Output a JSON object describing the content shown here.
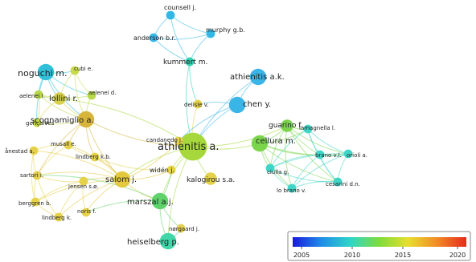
{
  "network": {
    "nodes": [
      {
        "id": "counsell",
        "label": "counsell j.",
        "color": "#33b8e6",
        "weight": 1
      },
      {
        "id": "anderson",
        "label": "anderson b.r.",
        "color": "#33b8e6",
        "weight": 1
      },
      {
        "id": "murphy",
        "label": "murphy g.b.",
        "color": "#33b8e6",
        "weight": 1
      },
      {
        "id": "kummert",
        "label": "kummert m.",
        "color": "#2ed1b0",
        "weight": 1
      },
      {
        "id": "athienitis_ak",
        "label": "athienitis a.k.",
        "color": "#3ab5e8",
        "weight": 3
      },
      {
        "id": "noguchi",
        "label": "noguchi m.",
        "color": "#30c0d8",
        "weight": 3
      },
      {
        "id": "cubi",
        "label": "cubi e.",
        "color": "#c8d94a",
        "weight": 1
      },
      {
        "id": "aelenei_l",
        "label": "aelenei l.",
        "color": "#b8d84c",
        "weight": 1
      },
      {
        "id": "lollini",
        "label": "lollini r.",
        "color": "#d8d04a",
        "weight": 2
      },
      {
        "id": "aelenei_d",
        "label": "aelenei d.",
        "color": "#b8d84c",
        "weight": 1
      },
      {
        "id": "scognamiglio",
        "label": "scognamiglio a.",
        "color": "#d7b43a",
        "weight": 3
      },
      {
        "id": "goncalves",
        "label": "gonçalves",
        "color": "#c8d94a",
        "weight": 1
      },
      {
        "id": "delisle",
        "label": "delisle v.",
        "color": "#e6d24a",
        "weight": 1
      },
      {
        "id": "chen",
        "label": "chen y.",
        "color": "#3ab5e8",
        "weight": 3
      },
      {
        "id": "guarino",
        "label": "guarino f.",
        "color": "#7ad54a",
        "weight": 2
      },
      {
        "id": "lamagnella",
        "label": "lamagnella l.",
        "color": "#3fd6c8",
        "weight": 1
      },
      {
        "id": "cellura",
        "label": "cellura m.",
        "color": "#7ad54a",
        "weight": 3
      },
      {
        "id": "athienitis_a",
        "label": "athienitis a.",
        "color": "#a6d83c",
        "weight": 6
      },
      {
        "id": "candanedo",
        "label": "candanedo j.",
        "color": "#e6d24a",
        "weight": 1
      },
      {
        "id": "musall",
        "label": "musall e.",
        "color": "#e6d24a",
        "weight": 1
      },
      {
        "id": "anestad",
        "label": "ånestad a.",
        "color": "#e6d24a",
        "weight": 1
      },
      {
        "id": "lindberg_kb",
        "label": "lindberg k.b.",
        "color": "#e6d24a",
        "weight": 1
      },
      {
        "id": "sartori",
        "label": "sartori i.",
        "color": "#e6d24a",
        "weight": 1
      },
      {
        "id": "jensen",
        "label": "jensen s.ø.",
        "color": "#e6d24a",
        "weight": 1
      },
      {
        "id": "salom",
        "label": "salom j.",
        "color": "#e4c83e",
        "weight": 3
      },
      {
        "id": "widen",
        "label": "widén j.",
        "color": "#e6d24a",
        "weight": 1
      },
      {
        "id": "kalogirou",
        "label": "kalogirou s.a.",
        "color": "#e6d24a",
        "weight": 2
      },
      {
        "id": "brano",
        "label": "brano v.l.",
        "color": "#3fd6c8",
        "weight": 1
      },
      {
        "id": "orioli",
        "label": "orioli a.",
        "color": "#3fd6c8",
        "weight": 1
      },
      {
        "id": "ciulla",
        "label": "ciulla g.",
        "color": "#3fd6c8",
        "weight": 1
      },
      {
        "id": "cesarini",
        "label": "cesarini d.n.",
        "color": "#3fd6c8",
        "weight": 1
      },
      {
        "id": "lobrano",
        "label": "lo brano v.",
        "color": "#3fd6c8",
        "weight": 1
      },
      {
        "id": "berggren",
        "label": "berggren b.",
        "color": "#e6d24a",
        "weight": 1
      },
      {
        "id": "noris",
        "label": "noris f.",
        "color": "#e6d24a",
        "weight": 1
      },
      {
        "id": "lindberg_k",
        "label": "lindberg k.",
        "color": "#e6d24a",
        "weight": 1
      },
      {
        "id": "marszal",
        "label": "marszal a.j.",
        "color": "#5fd36a",
        "weight": 3
      },
      {
        "id": "norgaard",
        "label": "nørgaard j.",
        "color": "#e6d24a",
        "weight": 1
      },
      {
        "id": "heiselberg",
        "label": "heiselberg p.",
        "color": "#3fd6a8",
        "weight": 3
      }
    ],
    "edges": [
      [
        "counsell",
        "murphy"
      ],
      [
        "counsell",
        "anderson"
      ],
      [
        "anderson",
        "murphy"
      ],
      [
        "anderson",
        "kummert"
      ],
      [
        "murphy",
        "kummert"
      ],
      [
        "counsell",
        "kummert"
      ],
      [
        "kummert",
        "athienitis_a"
      ],
      [
        "kummert",
        "delisle"
      ],
      [
        "athienitis_ak",
        "chen"
      ],
      [
        "athienitis_ak",
        "athienitis_a"
      ],
      [
        "chen",
        "athienitis_a"
      ],
      [
        "chen",
        "delisle"
      ],
      [
        "delisle",
        "athienitis_a"
      ],
      [
        "chen",
        "candanedo"
      ],
      [
        "noguchi",
        "cubi"
      ],
      [
        "noguchi",
        "aelenei_l"
      ],
      [
        "noguchi",
        "lollini"
      ],
      [
        "noguchi",
        "aelenei_d"
      ],
      [
        "noguchi",
        "scognamiglio"
      ],
      [
        "noguchi",
        "goncalves"
      ],
      [
        "cubi",
        "lollini"
      ],
      [
        "cubi",
        "aelenei_d"
      ],
      [
        "cubi",
        "scognamiglio"
      ],
      [
        "aelenei_l",
        "lollini"
      ],
      [
        "aelenei_l",
        "scognamiglio"
      ],
      [
        "aelenei_l",
        "aelenei_d"
      ],
      [
        "aelenei_d",
        "scognamiglio"
      ],
      [
        "lollini",
        "scognamiglio"
      ],
      [
        "goncalves",
        "scognamiglio"
      ],
      [
        "goncalves",
        "aelenei_l"
      ],
      [
        "lollini",
        "goncalves"
      ],
      [
        "scognamiglio",
        "athienitis_a"
      ],
      [
        "scognamiglio",
        "salom"
      ],
      [
        "scognamiglio",
        "musall"
      ],
      [
        "scognamiglio",
        "sartori"
      ],
      [
        "scognamiglio",
        "lindberg_kb"
      ],
      [
        "athienitis_a",
        "cellura"
      ],
      [
        "athienitis_a",
        "guarino"
      ],
      [
        "athienitis_a",
        "salom"
      ],
      [
        "athienitis_a",
        "marszal"
      ],
      [
        "athienitis_a",
        "kalogirou"
      ],
      [
        "athienitis_a",
        "candanedo"
      ],
      [
        "athienitis_a",
        "widen"
      ],
      [
        "athienitis_a",
        "lollini"
      ],
      [
        "athienitis_a",
        "heiselberg"
      ],
      [
        "cellura",
        "guarino"
      ],
      [
        "cellura",
        "lamagnella"
      ],
      [
        "cellura",
        "brano"
      ],
      [
        "cellura",
        "orioli"
      ],
      [
        "cellura",
        "ciulla"
      ],
      [
        "cellura",
        "cesarini"
      ],
      [
        "cellura",
        "lobrano"
      ],
      [
        "guarino",
        "lamagnella"
      ],
      [
        "guarino",
        "brano"
      ],
      [
        "guarino",
        "orioli"
      ],
      [
        "guarino",
        "ciulla"
      ],
      [
        "guarino",
        "cesarini"
      ],
      [
        "guarino",
        "lobrano"
      ],
      [
        "lamagnella",
        "orioli"
      ],
      [
        "lamagnella",
        "brano"
      ],
      [
        "lamagnella",
        "cesarini"
      ],
      [
        "lamagnella",
        "ciulla"
      ],
      [
        "brano",
        "orioli"
      ],
      [
        "brano",
        "ciulla"
      ],
      [
        "brano",
        "cesarini"
      ],
      [
        "brano",
        "lobrano"
      ],
      [
        "orioli",
        "cesarini"
      ],
      [
        "orioli",
        "ciulla"
      ],
      [
        "ciulla",
        "cesarini"
      ],
      [
        "ciulla",
        "lobrano"
      ],
      [
        "cesarini",
        "lobrano"
      ],
      [
        "orioli",
        "lobrano"
      ],
      [
        "salom",
        "musall"
      ],
      [
        "salom",
        "anestad"
      ],
      [
        "salom",
        "lindberg_kb"
      ],
      [
        "salom",
        "sartori"
      ],
      [
        "salom",
        "jensen"
      ],
      [
        "salom",
        "berggren"
      ],
      [
        "salom",
        "noris"
      ],
      [
        "salom",
        "lindberg_k"
      ],
      [
        "salom",
        "widen"
      ],
      [
        "salom",
        "marszal"
      ],
      [
        "salom",
        "candanedo"
      ],
      [
        "musall",
        "anestad"
      ],
      [
        "musall",
        "sartori"
      ],
      [
        "musall",
        "lindberg_kb"
      ],
      [
        "anestad",
        "sartori"
      ],
      [
        "anestad",
        "berggren"
      ],
      [
        "sartori",
        "jensen"
      ],
      [
        "sartori",
        "berggren"
      ],
      [
        "sartori",
        "lindberg_k"
      ],
      [
        "jensen",
        "berggren"
      ],
      [
        "jensen",
        "lindberg_k"
      ],
      [
        "jensen",
        "noris"
      ],
      [
        "berggren",
        "lindberg_k"
      ],
      [
        "lindberg_kb",
        "widen"
      ],
      [
        "marszal",
        "heiselberg"
      ],
      [
        "marszal",
        "norgaard"
      ],
      [
        "heiselberg",
        "norgaard"
      ],
      [
        "marszal",
        "widen"
      ],
      [
        "marszal",
        "noris"
      ],
      [
        "marszal",
        "sartori"
      ]
    ]
  },
  "legend": {
    "ticks": [
      "2005",
      "2010",
      "2015",
      "2020"
    ],
    "gradient": [
      "#1a1adc",
      "#1f8ee8",
      "#2ed6c8",
      "#7fdc3a",
      "#e8de2e",
      "#f28a26",
      "#e52a1e"
    ]
  }
}
